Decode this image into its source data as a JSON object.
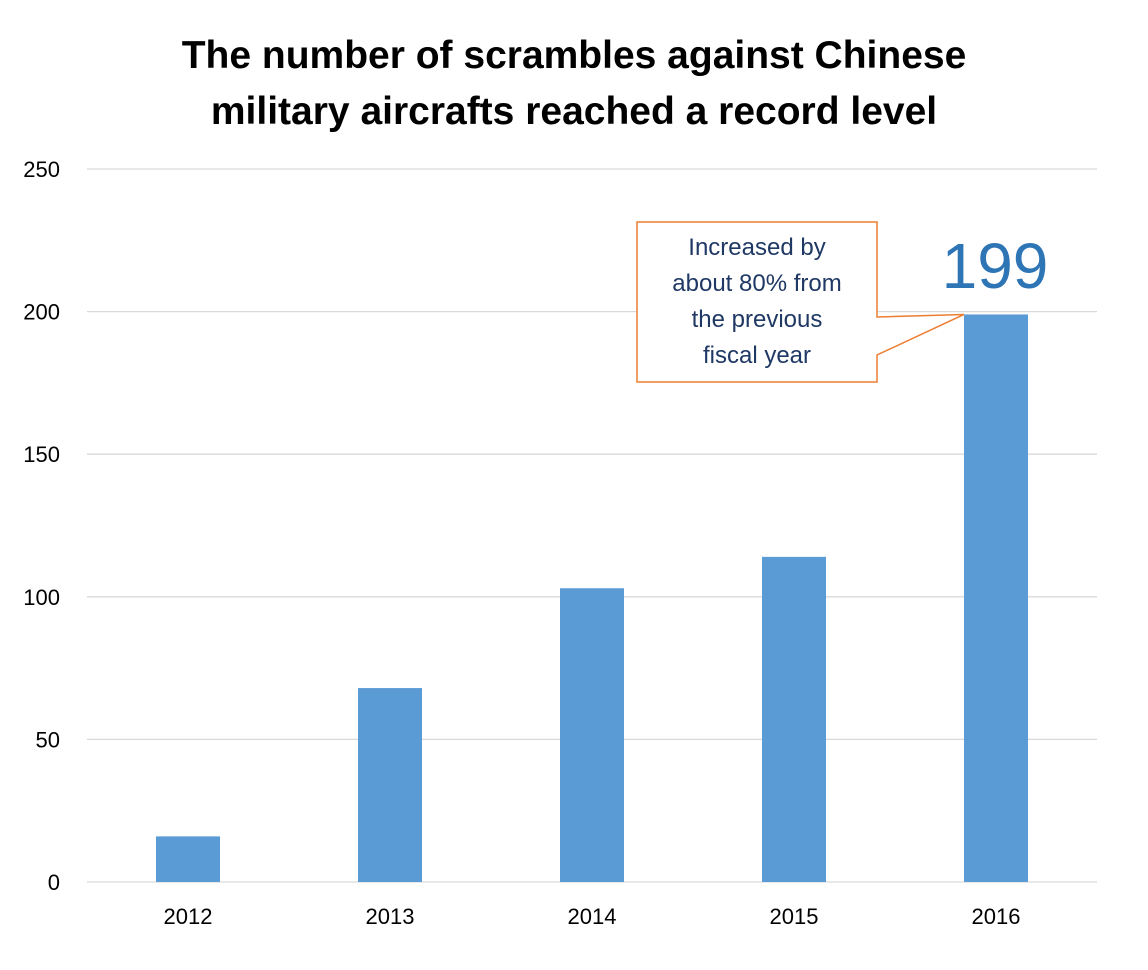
{
  "chart_data": {
    "type": "bar",
    "title_lines": [
      "The number of scrambles against Chinese",
      "military aircrafts reached a record level"
    ],
    "categories": [
      "2012",
      "2013",
      "2014",
      "2015",
      "2016"
    ],
    "values": [
      16,
      68,
      103,
      114,
      199
    ],
    "ylim": [
      0,
      250
    ],
    "yticks": [
      "0",
      "50",
      "100",
      "150",
      "200",
      "250"
    ],
    "xlabel": "",
    "ylabel": "",
    "grid": true,
    "legend": "none",
    "bar_color": "#5b9bd5",
    "data_label": {
      "category": "2016",
      "text": "199",
      "color": "#2e75b6"
    },
    "annotation": {
      "lines": [
        "Increased by",
        "about 80% from",
        "the previous",
        "fiscal year"
      ],
      "border_color": "#ed7d31",
      "text_color": "#1f3864"
    }
  }
}
